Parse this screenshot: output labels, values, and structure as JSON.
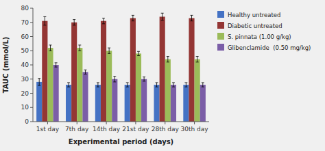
{
  "chart_data": {
    "type": "bar",
    "categories": [
      "1st day",
      "7th day",
      "14th day",
      "21st day",
      "28th day",
      "30th day"
    ],
    "series": [
      {
        "name": "Healthy untreated",
        "color": "#4472C4",
        "values": [
          28,
          26,
          26,
          26,
          26,
          26
        ],
        "errors": [
          2.5,
          1.5,
          1.5,
          1.5,
          1.5,
          1.5
        ]
      },
      {
        "name": "Diabetic untreated",
        "color": "#943634",
        "values": [
          71,
          70,
          71,
          73,
          74,
          73
        ],
        "errors": [
          3.0,
          2.0,
          2.0,
          2.0,
          2.5,
          2.0
        ]
      },
      {
        "name": "S. pinnata (1.00 g/kg)",
        "color": "#9BBB59",
        "values": [
          52,
          52,
          50,
          48,
          44,
          44
        ],
        "errors": [
          2.0,
          2.0,
          2.0,
          1.5,
          2.0,
          2.0
        ]
      },
      {
        "name": "Glibenclamide  (0.50 mg/kg)",
        "color": "#7B5EA7",
        "values": [
          40,
          35,
          30,
          30,
          26,
          26
        ],
        "errors": [
          1.5,
          1.5,
          2.0,
          1.5,
          1.5,
          1.5
        ]
      }
    ],
    "xlabel": "Experimental period (days)",
    "ylabel": "TAUC (mmol/L)",
    "ylim": [
      0,
      80
    ],
    "yticks": [
      0,
      10,
      20,
      30,
      40,
      50,
      60,
      70,
      80
    ],
    "grid": false,
    "legend": "right"
  }
}
